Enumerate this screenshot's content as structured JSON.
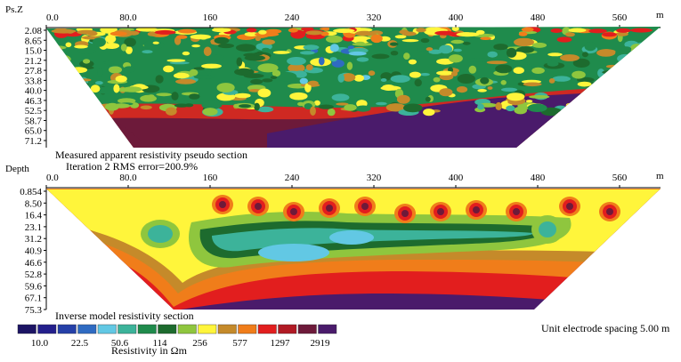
{
  "chart_data": [
    {
      "type": "heatmap",
      "panel": "pseudo",
      "title": "Measured apparent resistivity pseudo section",
      "subtitle": "Iteration 2 RMS error=200.9%",
      "ylabel": "Ps.Z",
      "x_ticks": [
        "0.0",
        "80.0",
        "160",
        "240",
        "320",
        "400",
        "480",
        "560"
      ],
      "x_unit": "m",
      "y_ticks": [
        "2.08",
        "8.65",
        "15.0",
        "21.2",
        "27.8",
        "33.8",
        "40.0",
        "46.3",
        "52.5",
        "58.7",
        "65.0",
        "71.2"
      ],
      "xlim": [
        0,
        600
      ]
    },
    {
      "type": "heatmap",
      "panel": "inverse",
      "title": "Inverse model resistivity section",
      "ylabel": "Depth",
      "x_ticks": [
        "0.0",
        "80.0",
        "160",
        "240",
        "320",
        "400",
        "480",
        "560"
      ],
      "x_unit": "m",
      "y_ticks": [
        "0.854",
        "8.50",
        "16.4",
        "23.1",
        "31.2",
        "40.9",
        "46.6",
        "52.8",
        "59.6",
        "67.1",
        "75.3"
      ],
      "xlim": [
        0,
        600
      ]
    }
  ],
  "legend": {
    "colors": [
      "#1c1464",
      "#231f8c",
      "#2540a8",
      "#2f6bc2",
      "#62c8e4",
      "#3cb39a",
      "#1f8b4c",
      "#1d6b2e",
      "#8fc63e",
      "#fff53b",
      "#c58a2a",
      "#f07d1a",
      "#e21e1e",
      "#b11a24",
      "#6d1a3a",
      "#4a1b6b"
    ],
    "labels": [
      "10.0",
      "22.5",
      "50.6",
      "114",
      "256",
      "577",
      "1297",
      "2919"
    ],
    "title": "Resistivity in Ωm"
  },
  "note": "Unit electrode spacing 5.00 m"
}
